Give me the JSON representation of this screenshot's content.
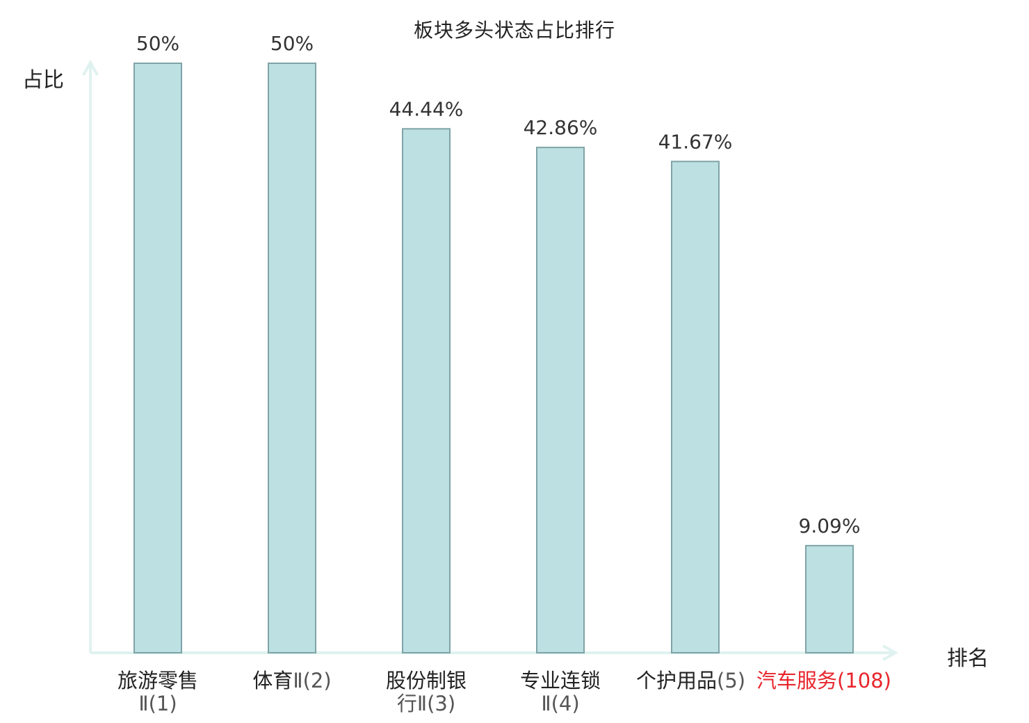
{
  "chart_data": {
    "type": "bar",
    "title": "板块多头状态占比排行",
    "ylabel": "占比",
    "xlabel": "排名",
    "ylim": [
      0,
      50
    ],
    "grid": false,
    "categories": [
      {
        "name": "旅游零售",
        "rank": "Ⅱ(1)",
        "highlight": false
      },
      {
        "name": "体育",
        "rank": "Ⅱ(2)",
        "highlight": false
      },
      {
        "name": "股份制银",
        "rank": "行Ⅱ(3)",
        "highlight": false
      },
      {
        "name": "专业连锁",
        "rank": "Ⅱ(4)",
        "highlight": false
      },
      {
        "name": "个护用品",
        "rank": "(5)",
        "highlight": false
      },
      {
        "name": "汽车服务",
        "rank": "(108)",
        "highlight": true
      }
    ],
    "values": [
      50,
      50,
      44.44,
      42.86,
      41.67,
      9.09
    ],
    "value_labels": [
      "50%",
      "50%",
      "44.44%",
      "42.86%",
      "41.67%",
      "9.09%"
    ]
  },
  "colors": {
    "bar_fill": "#bde0e3",
    "bar_stroke": "#7fa3a6",
    "axis": "#dff2ef",
    "highlight": "#e8242b"
  }
}
